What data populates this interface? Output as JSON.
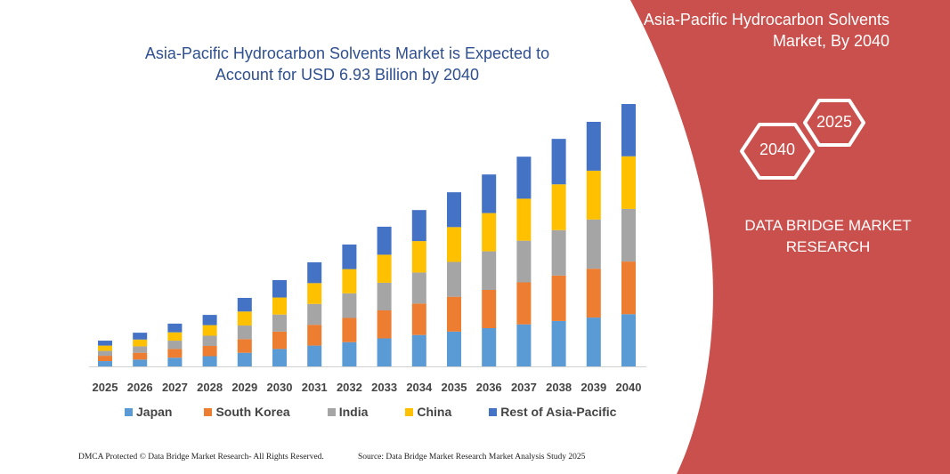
{
  "chart_data": {
    "type": "bar",
    "stacked": true,
    "title": "Asia-Pacific Hydrocarbon Solvents Market is Expected to Account for USD 6.93 Billion by 2040",
    "categories": [
      "2025",
      "2026",
      "2027",
      "2028",
      "2029",
      "2030",
      "2031",
      "2032",
      "2033",
      "2034",
      "2035",
      "2036",
      "2037",
      "2038",
      "2039",
      "2040"
    ],
    "series": [
      {
        "name": "Japan",
        "color": "#5b9bd5",
        "values": [
          0.14,
          0.18,
          0.23,
          0.27,
          0.36,
          0.46,
          0.55,
          0.64,
          0.74,
          0.83,
          0.92,
          1.01,
          1.11,
          1.2,
          1.29,
          1.38
        ]
      },
      {
        "name": "South Korea",
        "color": "#ed7d31",
        "values": [
          0.14,
          0.18,
          0.23,
          0.27,
          0.36,
          0.46,
          0.55,
          0.64,
          0.74,
          0.83,
          0.92,
          1.01,
          1.11,
          1.2,
          1.29,
          1.39
        ]
      },
      {
        "name": "India",
        "color": "#a5a5a5",
        "values": [
          0.13,
          0.17,
          0.22,
          0.27,
          0.36,
          0.45,
          0.55,
          0.65,
          0.73,
          0.82,
          0.92,
          1.02,
          1.1,
          1.2,
          1.3,
          1.39
        ]
      },
      {
        "name": "China",
        "color": "#ffc000",
        "values": [
          0.14,
          0.18,
          0.22,
          0.28,
          0.37,
          0.45,
          0.55,
          0.64,
          0.74,
          0.83,
          0.92,
          1.01,
          1.11,
          1.21,
          1.29,
          1.39
        ]
      },
      {
        "name": "Rest of Asia-Pacific",
        "color": "#4472c4",
        "values": [
          0.13,
          0.18,
          0.23,
          0.27,
          0.36,
          0.46,
          0.55,
          0.65,
          0.74,
          0.82,
          0.92,
          1.02,
          1.11,
          1.2,
          1.29,
          1.38
        ]
      }
    ],
    "grid": false,
    "legend": "bottom"
  },
  "side_panel": {
    "title_line1": "Asia-Pacific Hydrocarbon Solvents",
    "title_line2": "Market, By 2040",
    "hex_a": "2040",
    "hex_b": "2025",
    "brand_line1": "DATA BRIDGE MARKET",
    "brand_line2": "RESEARCH",
    "color": "#c9504c"
  },
  "footer": {
    "copyright": "DMCA Protected © Data Bridge Market Research-  All Rights Reserved.",
    "source": "Source:  Data Bridge Market Research  Market Analysis Study 2025"
  }
}
